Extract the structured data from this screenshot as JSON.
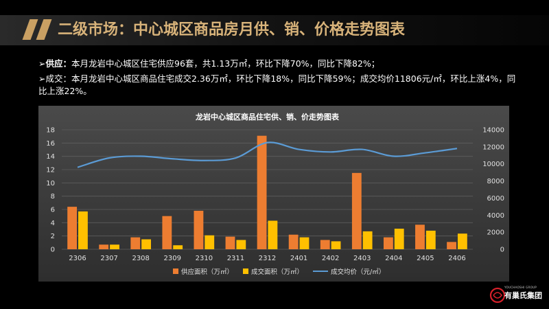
{
  "header": {
    "title": "二级市场：中心城区商品房月供、销、价格走势图表"
  },
  "bullets": [
    {
      "label": "供应：",
      "text": "本月龙岩中心城区住宅供应96套，共1.13万㎡，环比下降70%，同比下降82%；"
    },
    {
      "label": "",
      "text": "成交：本月龙岩中心城区商品住宅成交2.36万㎡，环比下降18%，同比下降59%；成交均价11806元/㎡，环比上涨4%，同比上涨22%。"
    }
  ],
  "chart_data": {
    "type": "bar",
    "title": "龙岩中心城区商品住宅供、销、价走势图表",
    "categories": [
      "2306",
      "2307",
      "2308",
      "2309",
      "2310",
      "2311",
      "2312",
      "2401",
      "2402",
      "2403",
      "2404",
      "2405",
      "2406"
    ],
    "series": [
      {
        "name": "供应面积（万㎡）",
        "type": "bar",
        "axis": "left",
        "color": "#ed7d31",
        "values": [
          6.4,
          0.7,
          1.8,
          5.0,
          5.8,
          1.9,
          17.1,
          2.2,
          1.4,
          11.5,
          1.8,
          3.7,
          1.1
        ]
      },
      {
        "name": "成交面积（万㎡）",
        "type": "bar",
        "axis": "left",
        "color": "#ffc000",
        "values": [
          5.7,
          0.7,
          1.5,
          0.6,
          2.1,
          1.4,
          4.3,
          1.8,
          1.2,
          2.7,
          3.1,
          2.8,
          2.36
        ]
      },
      {
        "name": "成交均价（元/㎡）",
        "type": "line",
        "axis": "right",
        "color": "#5b9bd5",
        "values": [
          9600,
          10700,
          10900,
          10600,
          10400,
          10700,
          12500,
          11700,
          11400,
          11700,
          10900,
          11300,
          11806
        ]
      }
    ],
    "ylim_left": [
      0,
      18
    ],
    "yticks_left": [
      0,
      2,
      4,
      6,
      8,
      10,
      12,
      14,
      16,
      18
    ],
    "ylim_right": [
      0,
      14000
    ],
    "yticks_right": [
      0,
      2000,
      4000,
      6000,
      8000,
      10000,
      12000,
      14000
    ],
    "grid": true,
    "legend_position": "bottom"
  },
  "footer": {
    "logo_text": "有巢氏集团",
    "logo_small": "YOUCHAOSHI GROUP"
  },
  "colors": {
    "title": "#d8b37a",
    "accent": "#c9a063",
    "chart_bg": "#3c3c3c"
  }
}
